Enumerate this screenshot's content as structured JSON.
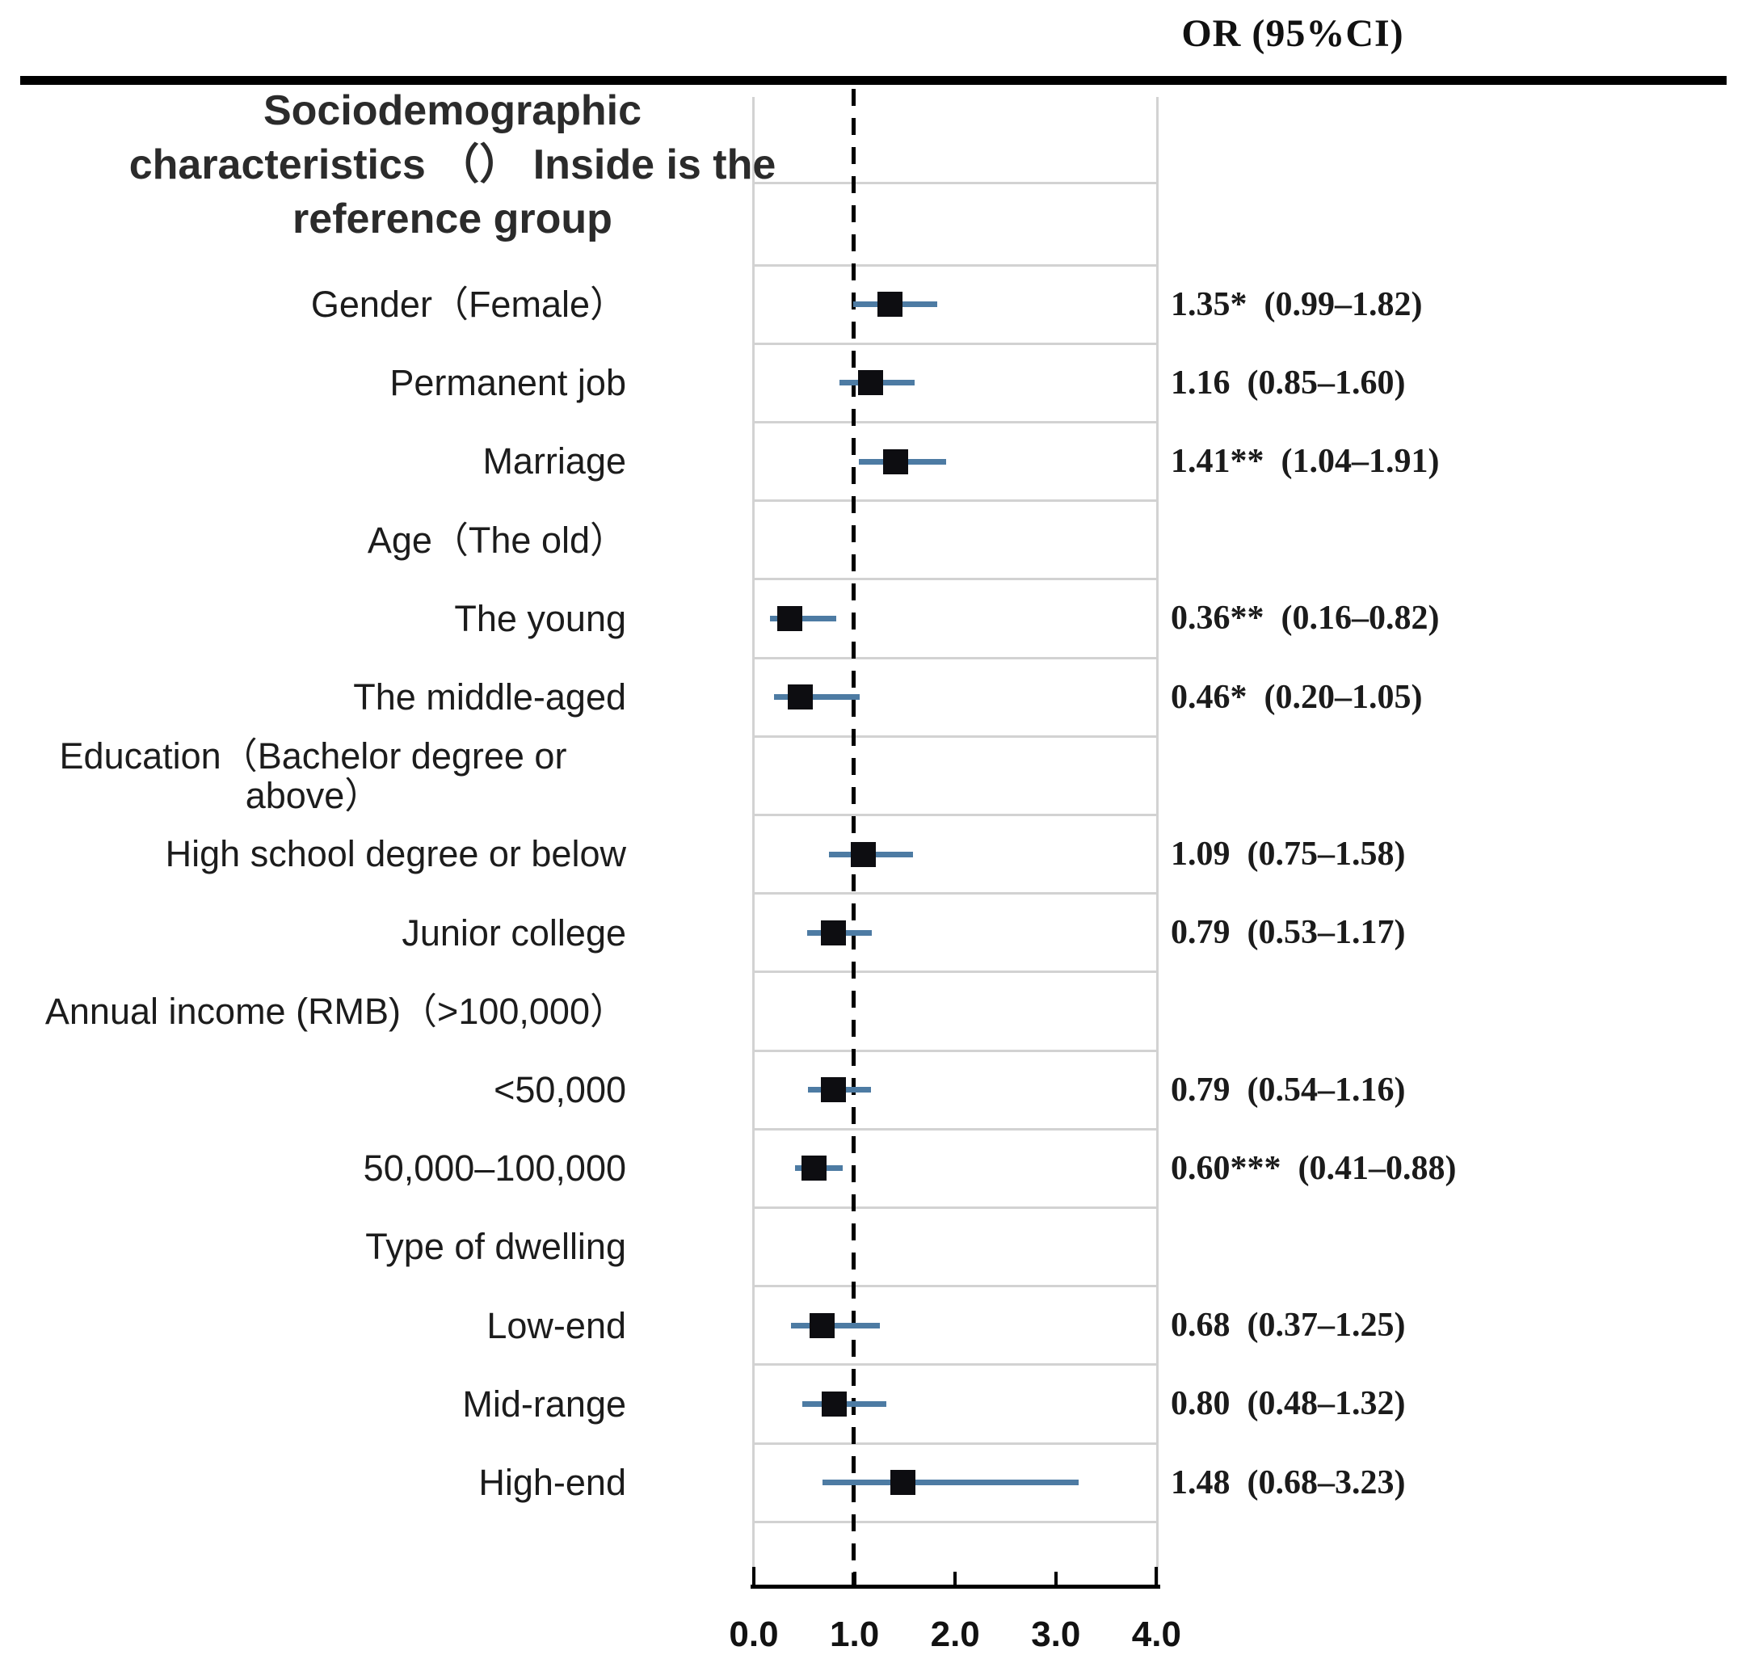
{
  "header": {
    "or_ci": "OR (95%CI)"
  },
  "title": {
    "text": "Sociodemographic\ncharacteristics （） Inside is the\nreference group"
  },
  "chart_data": {
    "type": "scatter",
    "subtype": "forest-plot",
    "title": "Sociodemographic characteristics （） Inside is the reference group",
    "value_column_header": "OR (95%CI)",
    "x_axis": {
      "min": 0.0,
      "max": 4.0,
      "tick_values": [
        0.0,
        1.0,
        2.0,
        3.0,
        4.0
      ],
      "tick_labels": [
        "0.0",
        "1.0",
        "2.0",
        "3.0",
        "4.0"
      ],
      "reference_line": 1.0,
      "grid": "horizontal-row-separators"
    },
    "legend": "none",
    "colors": {
      "ci_line": "#4d7ba3",
      "marker": "#0d0d11",
      "gridline": "#d2d2d2",
      "reference_line": "#000000",
      "rule": "#000000"
    },
    "rows": [
      {
        "label": "Gender（Female）",
        "or": "1.35*",
        "ci": "(0.99–1.82)",
        "est": 1.35,
        "lo": 0.99,
        "hi": 1.82
      },
      {
        "label": "Permanent job",
        "or": "1.16",
        "ci": "(0.85–1.60)",
        "est": 1.16,
        "lo": 0.85,
        "hi": 1.6
      },
      {
        "label": "Marriage",
        "or": "1.41**",
        "ci": "(1.04–1.91)",
        "est": 1.41,
        "lo": 1.04,
        "hi": 1.91
      },
      {
        "label": "Age（The old）",
        "or": null,
        "ci": null,
        "est": null,
        "lo": null,
        "hi": null
      },
      {
        "label": "The young",
        "or": "0.36**",
        "ci": "(0.16–0.82)",
        "est": 0.36,
        "lo": 0.16,
        "hi": 0.82
      },
      {
        "label": "The middle-aged",
        "or": "0.46*",
        "ci": "(0.20–1.05)",
        "est": 0.46,
        "lo": 0.2,
        "hi": 1.05
      },
      {
        "label": "Education（Bachelor degree or\nabove）",
        "or": null,
        "ci": null,
        "est": null,
        "lo": null,
        "hi": null
      },
      {
        "label": "High school degree or below",
        "or": "1.09",
        "ci": "(0.75–1.58)",
        "est": 1.09,
        "lo": 0.75,
        "hi": 1.58
      },
      {
        "label": "Junior college",
        "or": "0.79",
        "ci": "(0.53–1.17)",
        "est": 0.79,
        "lo": 0.53,
        "hi": 1.17
      },
      {
        "label": "Annual income (RMB)（>100,000）",
        "or": null,
        "ci": null,
        "est": null,
        "lo": null,
        "hi": null
      },
      {
        "label": "<50,000",
        "or": "0.79",
        "ci": "(0.54–1.16)",
        "est": 0.79,
        "lo": 0.54,
        "hi": 1.16
      },
      {
        "label": "50,000–100,000",
        "or": "0.60***",
        "ci": "(0.41–0.88)",
        "est": 0.6,
        "lo": 0.41,
        "hi": 0.88
      },
      {
        "label": "Type of dwelling",
        "or": null,
        "ci": null,
        "est": null,
        "lo": null,
        "hi": null
      },
      {
        "label": "Low-end",
        "or": "0.68",
        "ci": "(0.37–1.25)",
        "est": 0.68,
        "lo": 0.37,
        "hi": 1.25
      },
      {
        "label": "Mid-range",
        "or": "0.80",
        "ci": "(0.48–1.32)",
        "est": 0.8,
        "lo": 0.48,
        "hi": 1.32
      },
      {
        "label": "High-end",
        "or": "1.48",
        "ci": "(0.68–3.23)",
        "est": 1.48,
        "lo": 0.68,
        "hi": 3.23
      }
    ]
  }
}
